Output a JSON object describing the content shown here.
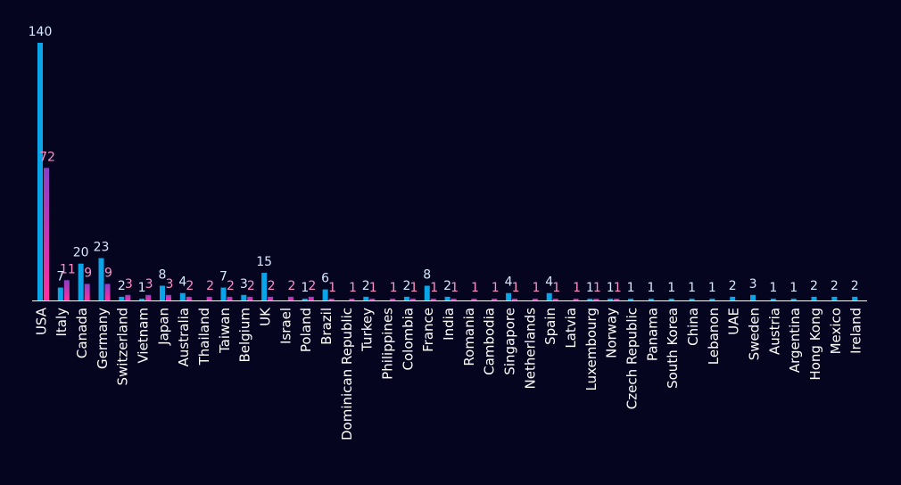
{
  "colors": {
    "background": "#050520",
    "series_a": "#0aa4e8",
    "series_b_top": "#8a3fc8",
    "series_b_bottom": "#ff2fa0",
    "label_a": "#d8e8ff",
    "label_b": "#ff8fc8",
    "axis": "#ffffff"
  },
  "chart_data": {
    "type": "bar",
    "title": "",
    "xlabel": "",
    "ylabel": "",
    "ylim": [
      0,
      140
    ],
    "grid": false,
    "legend": "none",
    "categories": [
      "USA",
      "Italy",
      "Canada",
      "Germany",
      "Switzerland",
      "Vietnam",
      "Japan",
      "Australia",
      "Thailand",
      "Taiwan",
      "Belgium",
      "UK",
      "Israel",
      "Poland",
      "Brazil",
      "Dominican Republic",
      "Turkey",
      "Philippines",
      "Colombia",
      "France",
      "India",
      "Romania",
      "Cambodia",
      "Singapore",
      "Netherlands",
      "Spain",
      "Latvia",
      "Luxembourg",
      "Norway",
      "Czech Republic",
      "Panama",
      "South Korea",
      "China",
      "Lebanon",
      "UAE",
      "Sweden",
      "Austria",
      "Argentina",
      "Hong Kong",
      "Mexico",
      "Ireland"
    ],
    "series": [
      {
        "values": [
          140,
          7,
          20,
          23,
          2,
          1,
          8,
          4,
          null,
          7,
          3,
          15,
          null,
          1,
          6,
          null,
          2,
          null,
          2,
          8,
          2,
          null,
          null,
          4,
          null,
          4,
          null,
          1,
          1,
          1,
          1,
          1,
          1,
          1,
          2,
          3,
          1,
          1,
          2,
          2,
          2
        ]
      },
      {
        "values": [
          72,
          11,
          9,
          9,
          3,
          3,
          3,
          2,
          2,
          2,
          2,
          2,
          2,
          2,
          1,
          1,
          1,
          1,
          1,
          1,
          1,
          1,
          1,
          1,
          1,
          1,
          1,
          1,
          1,
          null,
          null,
          null,
          null,
          null,
          null,
          null,
          null,
          null,
          null,
          null,
          null
        ]
      }
    ]
  }
}
